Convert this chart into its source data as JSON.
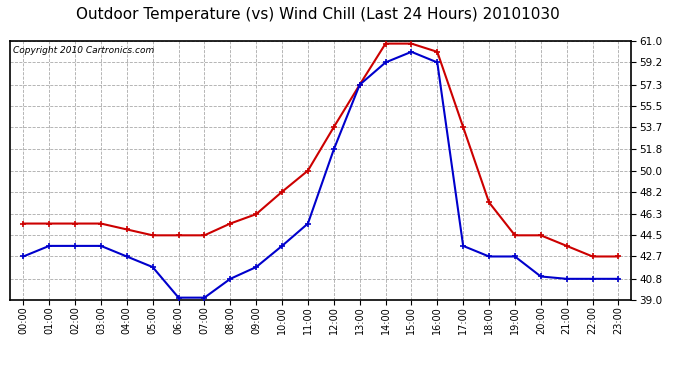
{
  "title": "Outdoor Temperature (vs) Wind Chill (Last 24 Hours) 20101030",
  "copyright": "Copyright 2010 Cartronics.com",
  "hours": [
    "00:00",
    "01:00",
    "02:00",
    "03:00",
    "04:00",
    "05:00",
    "06:00",
    "07:00",
    "08:00",
    "09:00",
    "10:00",
    "11:00",
    "12:00",
    "13:00",
    "14:00",
    "15:00",
    "16:00",
    "17:00",
    "18:00",
    "19:00",
    "20:00",
    "21:00",
    "22:00",
    "23:00"
  ],
  "temp": [
    45.5,
    45.5,
    45.5,
    45.5,
    45.0,
    44.5,
    44.5,
    44.5,
    45.5,
    46.3,
    48.2,
    50.0,
    53.7,
    57.3,
    60.8,
    60.8,
    60.1,
    53.7,
    47.3,
    44.5,
    44.5,
    43.6,
    42.7,
    42.7
  ],
  "wind_chill": [
    42.7,
    43.6,
    43.6,
    43.6,
    42.7,
    41.8,
    39.2,
    39.2,
    40.8,
    41.8,
    43.6,
    45.5,
    51.8,
    57.3,
    59.2,
    60.1,
    59.2,
    43.6,
    42.7,
    42.7,
    41.0,
    40.8,
    40.8,
    40.8
  ],
  "ylim": [
    39.0,
    61.0
  ],
  "yticks": [
    39.0,
    40.8,
    42.7,
    44.5,
    46.3,
    48.2,
    50.0,
    51.8,
    53.7,
    55.5,
    57.3,
    59.2,
    61.0
  ],
  "temp_color": "#cc0000",
  "wind_chill_color": "#0000cc",
  "background_color": "#ffffff",
  "plot_bg_color": "#ffffff",
  "grid_color": "#aaaaaa",
  "title_fontsize": 11,
  "copyright_fontsize": 6.5
}
